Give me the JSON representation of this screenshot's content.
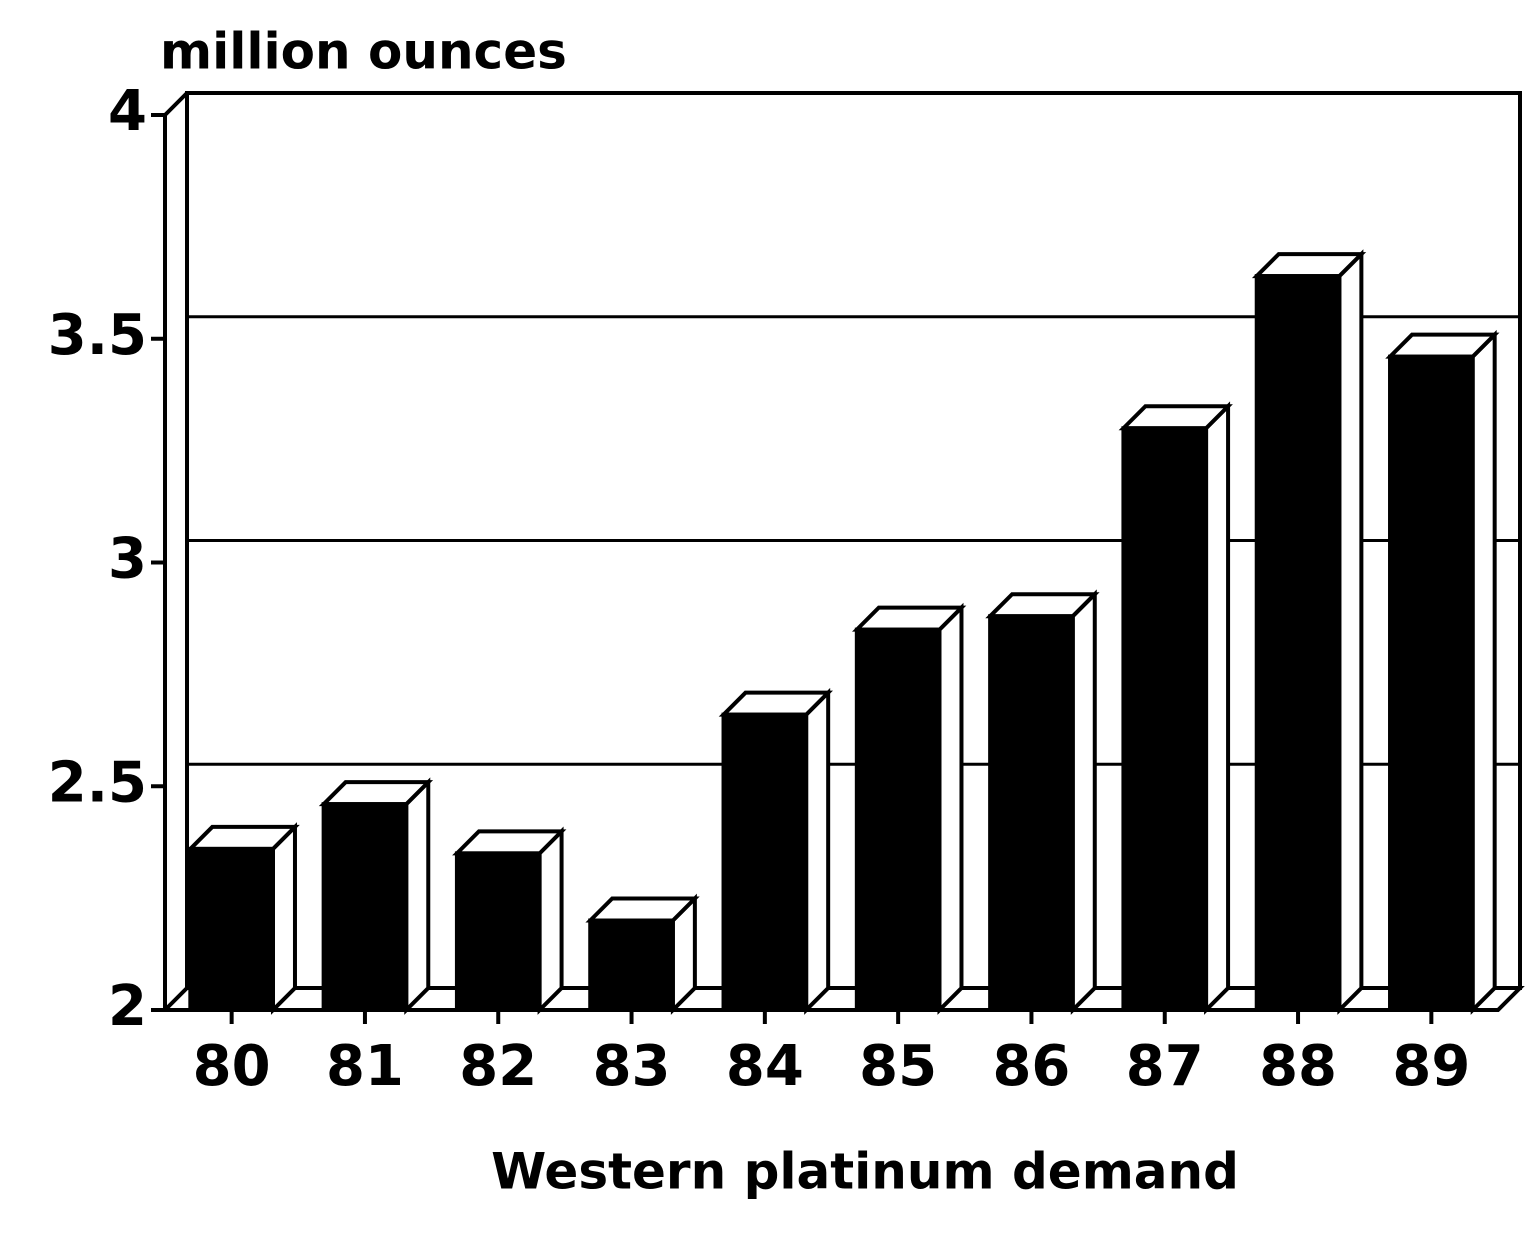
{
  "chart_data": {
    "type": "bar3d",
    "y_axis_label": "million ounces",
    "x_axis_label": "Western platinum demand",
    "categories": [
      "80",
      "81",
      "82",
      "83",
      "84",
      "85",
      "86",
      "87",
      "88",
      "89"
    ],
    "values": [
      2.36,
      2.46,
      2.35,
      2.2,
      2.66,
      2.85,
      2.88,
      3.3,
      3.64,
      3.46
    ],
    "color": "#000000",
    "ylim": [
      2,
      4
    ],
    "yticks": [
      2,
      2.5,
      3,
      3.5,
      4
    ],
    "grid": true
  }
}
